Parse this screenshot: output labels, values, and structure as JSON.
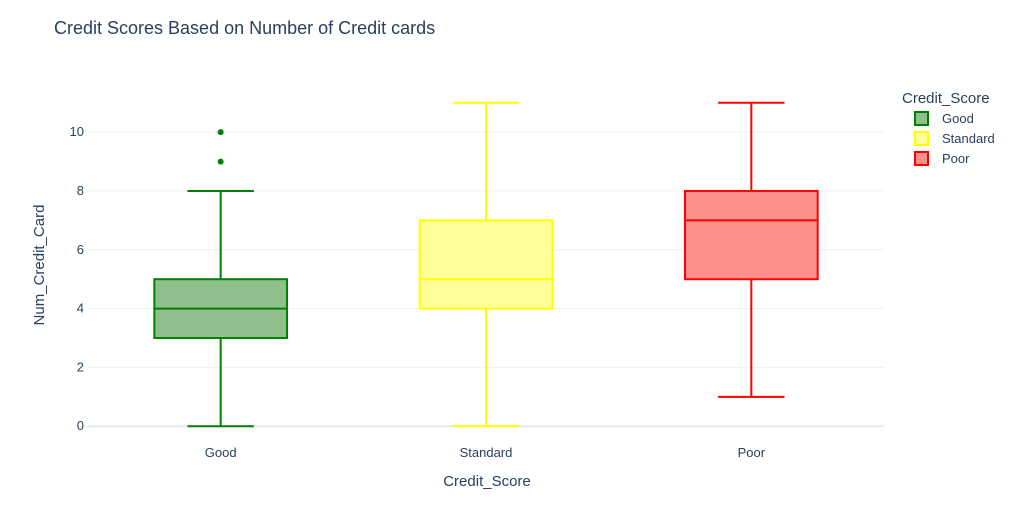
{
  "chart_data": {
    "type": "box",
    "title": "Credit Scores Based on Number of Credit cards",
    "xlabel": "Credit_Score",
    "ylabel": "Num_Credit_Card",
    "categories": [
      "Good",
      "Standard",
      "Poor"
    ],
    "ylim": [
      -0.4,
      11.4
    ],
    "yticks": [
      0,
      2,
      4,
      6,
      8,
      10
    ],
    "grid": true,
    "legend": {
      "title": "Credit_Score",
      "placement": "top-right"
    },
    "series": [
      {
        "name": "Good",
        "color": "#008000",
        "fill": "#8fbf8a",
        "min": 0,
        "q1": 3,
        "median": 4,
        "q3": 5,
        "max": 8,
        "outliers": [
          9,
          10
        ]
      },
      {
        "name": "Standard",
        "color": "#ffff00",
        "fill": "#ffff99",
        "min": 0,
        "q1": 4,
        "median": 5,
        "q3": 7,
        "max": 11,
        "outliers": []
      },
      {
        "name": "Poor",
        "color": "#ff0000",
        "fill": "#ff8f8a",
        "min": 1,
        "q1": 5,
        "median": 7,
        "q3": 8,
        "max": 11,
        "outliers": []
      }
    ]
  }
}
